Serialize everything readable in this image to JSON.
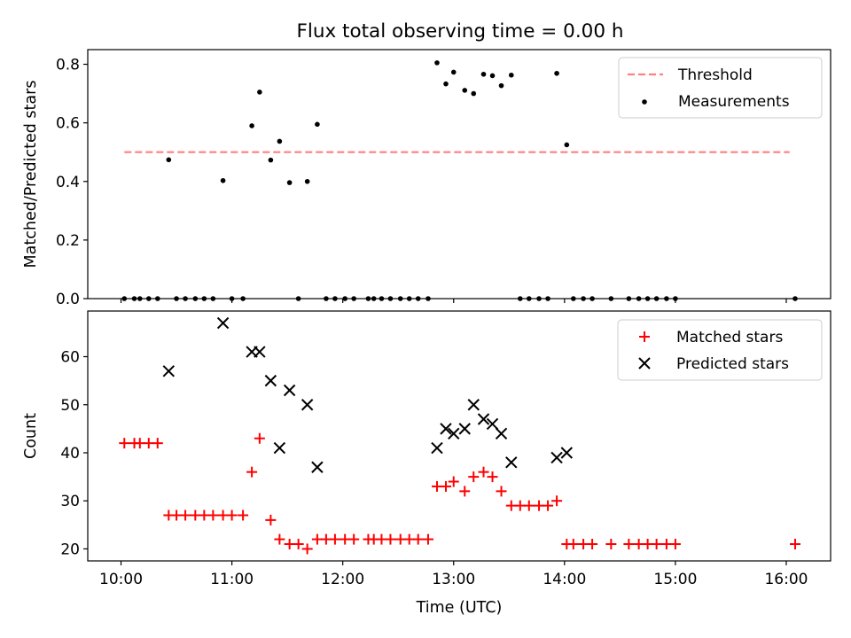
{
  "title": "Flux total observing time = 0.00 h",
  "chart_data": [
    {
      "type": "scatter",
      "ylabel": "Matched/Predicted stars",
      "xlim": [
        9.7,
        16.4
      ],
      "ylim": [
        0,
        0.85
      ],
      "yticks": [
        0.0,
        0.2,
        0.4,
        0.6,
        0.8
      ],
      "ytick_labels": [
        "0.0",
        "0.2",
        "0.4",
        "0.6",
        "0.8"
      ],
      "legend_position": "top-right",
      "grid": false,
      "threshold": {
        "name": "Threshold",
        "y": 0.5,
        "x_range": [
          10.03,
          16.03
        ],
        "color": "#ff7f7f"
      },
      "measurements": {
        "name": "Measurements",
        "color": "#000000",
        "x": [
          10.03,
          10.12,
          10.17,
          10.25,
          10.33,
          10.43,
          10.5,
          10.58,
          10.67,
          10.75,
          10.83,
          10.92,
          11.0,
          11.1,
          11.18,
          11.25,
          11.35,
          11.43,
          11.52,
          11.6,
          11.68,
          11.77,
          11.85,
          11.93,
          12.02,
          12.1,
          12.23,
          12.28,
          12.35,
          12.43,
          12.52,
          12.6,
          12.68,
          12.77,
          12.85,
          12.93,
          13.0,
          13.1,
          13.18,
          13.27,
          13.35,
          13.43,
          13.52,
          13.6,
          13.68,
          13.77,
          13.85,
          13.93,
          14.02,
          14.08,
          14.17,
          14.25,
          14.42,
          14.58,
          14.67,
          14.75,
          14.83,
          14.92,
          15.0,
          16.08
        ],
        "y": [
          0.0,
          0.0,
          0.0,
          0.0,
          0.0,
          0.474,
          0.0,
          0.0,
          0.0,
          0.0,
          0.0,
          0.403,
          0.0,
          0.0,
          0.59,
          0.705,
          0.473,
          0.537,
          0.396,
          0.0,
          0.4,
          0.595,
          0.0,
          0.0,
          0.0,
          0.0,
          0.0,
          0.0,
          0.0,
          0.0,
          0.0,
          0.0,
          0.0,
          0.0,
          0.805,
          0.733,
          0.773,
          0.711,
          0.7,
          0.766,
          0.761,
          0.727,
          0.763,
          0.0,
          0.0,
          0.0,
          0.0,
          0.769,
          0.525,
          0.0,
          0.0,
          0.0,
          0.0,
          0.0,
          0.0,
          0.0,
          0.0,
          0.0,
          0.0,
          0.0
        ]
      }
    },
    {
      "type": "scatter",
      "xlabel": "Time (UTC)",
      "ylabel": "Count",
      "xlim": [
        9.7,
        16.4
      ],
      "ylim": [
        17.5,
        69.5
      ],
      "yticks": [
        20,
        30,
        40,
        50,
        60
      ],
      "ytick_labels": [
        "20",
        "30",
        "40",
        "50",
        "60"
      ],
      "xticks": [
        10,
        11,
        12,
        13,
        14,
        15,
        16
      ],
      "xtick_labels": [
        "10:00",
        "11:00",
        "12:00",
        "13:00",
        "14:00",
        "15:00",
        "16:00"
      ],
      "legend_position": "top-right",
      "grid": false,
      "series": [
        {
          "name": "Matched stars",
          "marker": "plus",
          "color": "#ff0000",
          "x": [
            10.03,
            10.12,
            10.17,
            10.25,
            10.33,
            10.43,
            10.5,
            10.58,
            10.67,
            10.75,
            10.83,
            10.92,
            11.0,
            11.1,
            11.18,
            11.25,
            11.35,
            11.43,
            11.52,
            11.6,
            11.68,
            11.77,
            11.85,
            11.93,
            12.02,
            12.1,
            12.23,
            12.28,
            12.35,
            12.43,
            12.52,
            12.6,
            12.68,
            12.77,
            12.85,
            12.93,
            13.0,
            13.1,
            13.18,
            13.27,
            13.35,
            13.43,
            13.52,
            13.6,
            13.68,
            13.77,
            13.85,
            13.93,
            14.02,
            14.08,
            14.17,
            14.25,
            14.42,
            14.58,
            14.67,
            14.75,
            14.83,
            14.92,
            15.0,
            16.08
          ],
          "y": [
            42,
            42,
            42,
            42,
            42,
            27,
            27,
            27,
            27,
            27,
            27,
            27,
            27,
            27,
            36,
            43,
            26,
            22,
            21,
            21,
            20,
            22,
            22,
            22,
            22,
            22,
            22,
            22,
            22,
            22,
            22,
            22,
            22,
            22,
            33,
            33,
            34,
            32,
            35,
            36,
            35,
            32,
            29,
            29,
            29,
            29,
            29,
            30,
            21,
            21,
            21,
            21,
            21,
            21,
            21,
            21,
            21,
            21,
            21,
            21
          ]
        },
        {
          "name": "Predicted stars",
          "marker": "x",
          "color": "#000000",
          "x": [
            10.43,
            10.92,
            11.18,
            11.25,
            11.35,
            11.43,
            11.52,
            11.68,
            11.77,
            12.85,
            12.93,
            13.0,
            13.1,
            13.18,
            13.27,
            13.35,
            13.43,
            13.52,
            13.93,
            14.02
          ],
          "y": [
            57,
            67,
            61,
            61,
            55,
            41,
            53,
            50,
            37,
            41,
            45,
            44,
            45,
            50,
            47,
            46,
            44,
            38,
            39,
            40
          ]
        }
      ]
    }
  ]
}
